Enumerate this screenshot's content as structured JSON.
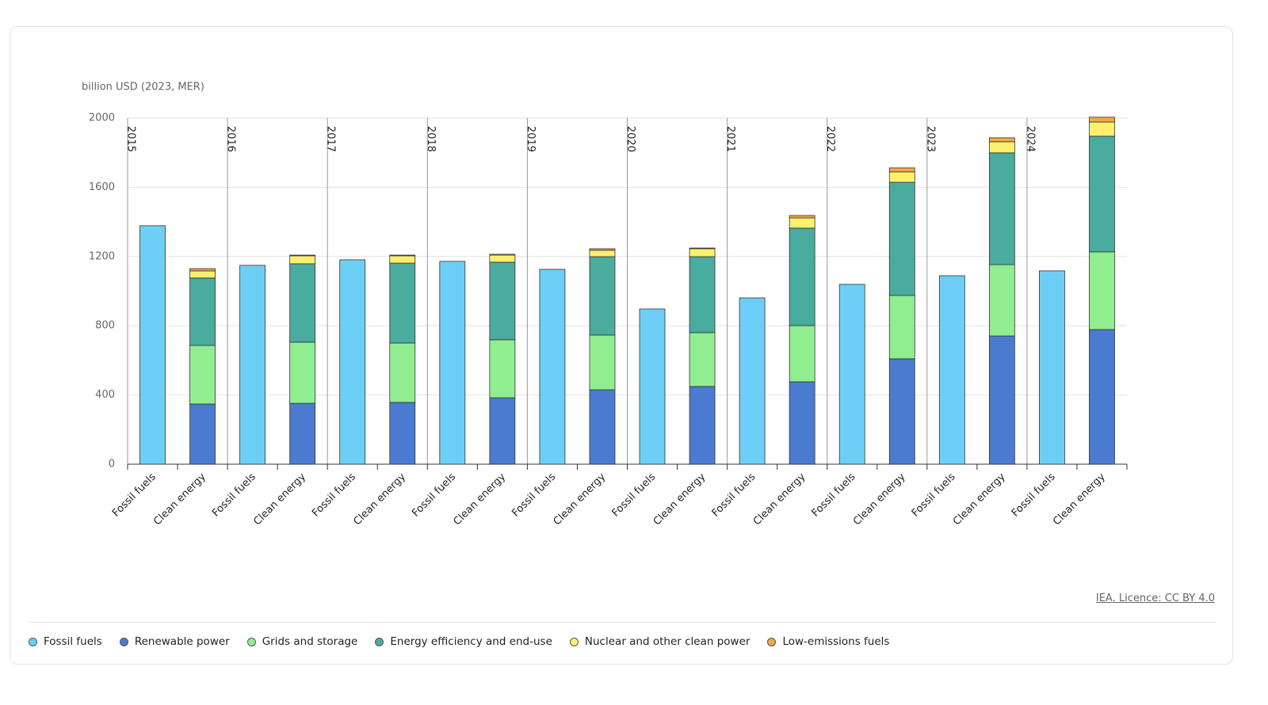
{
  "chart_data": {
    "type": "bar",
    "stacked": true,
    "unit_label": "billion USD (2023, MER)",
    "groups": [
      "2015",
      "2016",
      "2017",
      "2018",
      "2019",
      "2020",
      "2021",
      "2022",
      "2023",
      "2024"
    ],
    "categories": [
      "Fossil fuels",
      "Clean energy",
      "Fossil fuels",
      "Clean energy",
      "Fossil fuels",
      "Clean energy",
      "Fossil fuels",
      "Clean energy",
      "Fossil fuels",
      "Clean energy",
      "Fossil fuels",
      "Clean energy",
      "Fossil fuels",
      "Clean energy",
      "Fossil fuels",
      "Clean energy",
      "Fossil fuels",
      "Clean energy",
      "Fossil fuels",
      "Clean energy"
    ],
    "series": [
      {
        "name": "Fossil fuels",
        "color": "#6dcff6",
        "values": [
          1378,
          null,
          1149,
          null,
          1181,
          null,
          1172,
          null,
          1126,
          null,
          897,
          null,
          961,
          null,
          1039,
          null,
          1089,
          null,
          1117,
          null
        ]
      },
      {
        "name": "Renewable power",
        "color": "#4a7bd0",
        "values": [
          null,
          348,
          null,
          352,
          null,
          357,
          null,
          384,
          null,
          430,
          null,
          449,
          null,
          476,
          null,
          609,
          null,
          741,
          null,
          778
        ]
      },
      {
        "name": "Grids and storage",
        "color": "#90ee90",
        "values": [
          null,
          338,
          null,
          353,
          null,
          343,
          null,
          335,
          null,
          316,
          null,
          311,
          null,
          325,
          null,
          366,
          null,
          412,
          null,
          449
        ]
      },
      {
        "name": "Energy efficiency and end-use",
        "color": "#4aab9f",
        "values": [
          null,
          390,
          null,
          453,
          null,
          462,
          null,
          448,
          null,
          453,
          null,
          439,
          null,
          563,
          null,
          654,
          null,
          646,
          null,
          668
        ]
      },
      {
        "name": "Nuclear and other clean power",
        "color": "#fdf06f",
        "values": [
          null,
          41,
          null,
          46,
          null,
          42,
          null,
          41,
          null,
          37,
          null,
          46,
          null,
          59,
          null,
          60,
          null,
          64,
          null,
          82
        ]
      },
      {
        "name": "Low-emissions fuels",
        "color": "#f0a848",
        "values": [
          null,
          13,
          null,
          4,
          null,
          4,
          null,
          5,
          null,
          9,
          null,
          4,
          null,
          14,
          null,
          23,
          null,
          23,
          null,
          28
        ]
      }
    ],
    "ylim": [
      0,
      2000
    ],
    "yticks": [
      0,
      400,
      800,
      1200,
      1600,
      2000
    ],
    "grid": true,
    "source": "IEA. Licence: CC BY 4.0"
  }
}
